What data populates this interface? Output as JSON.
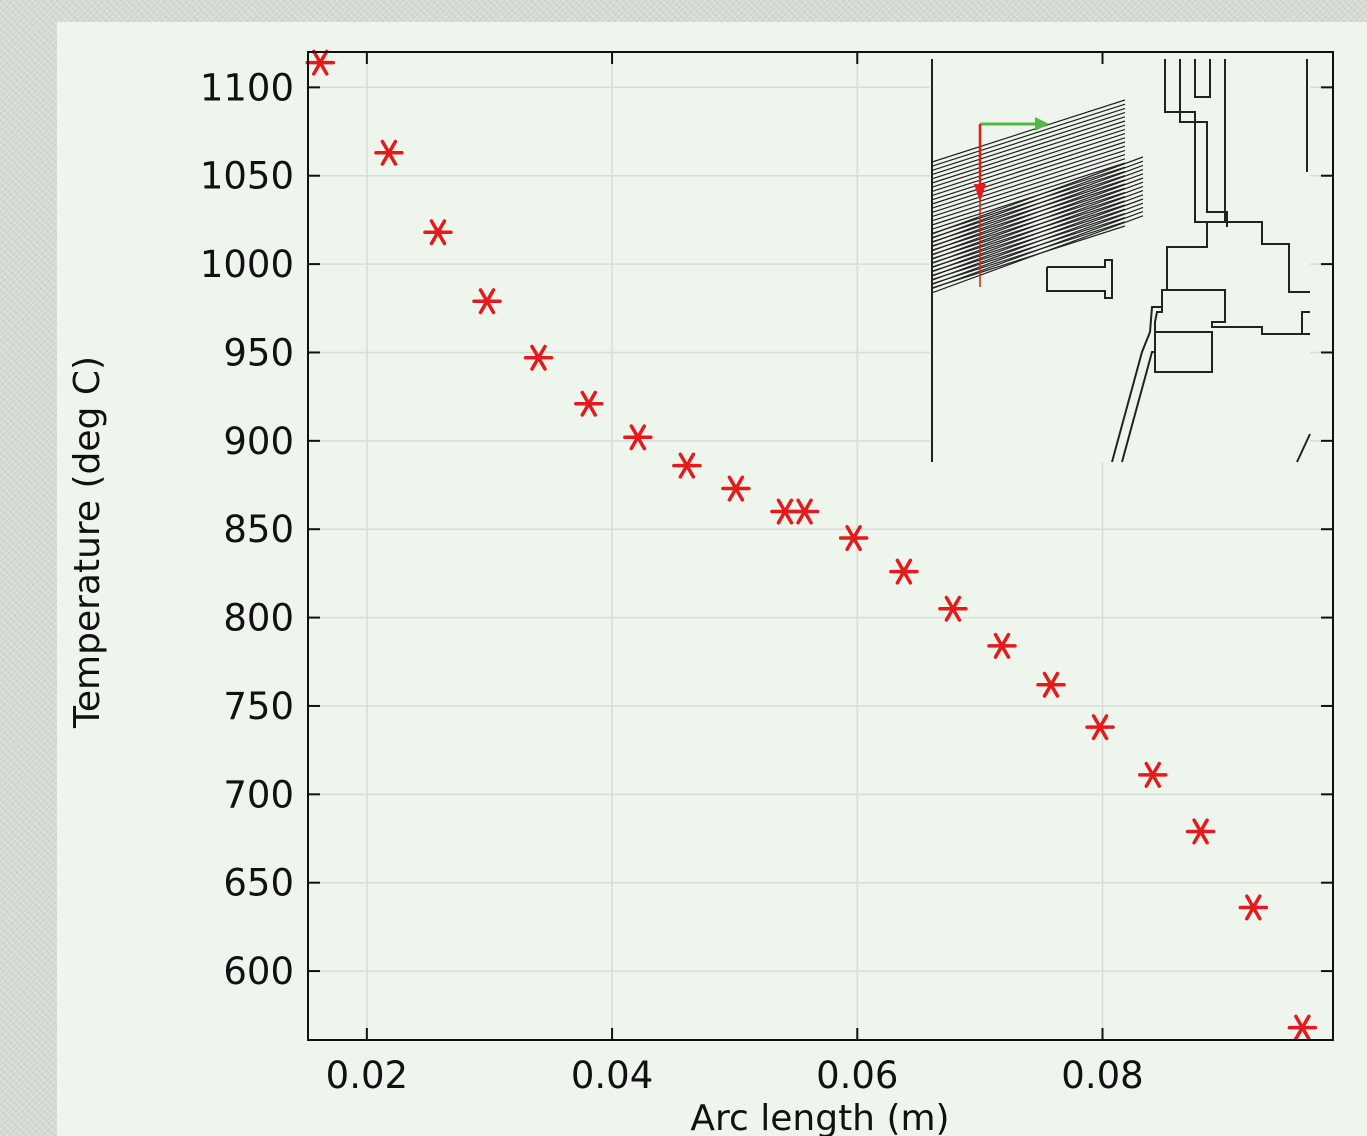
{
  "chart_data": {
    "type": "scatter",
    "xlabel": "Arc length (m)",
    "ylabel": "Temperature (deg C)",
    "xlim": [
      0.0152,
      0.0988
    ],
    "ylim": [
      561,
      1120
    ],
    "xticks": [
      0.02,
      0.04,
      0.06,
      0.08
    ],
    "xtick_labels": [
      "0.02",
      "0.04",
      "0.06",
      "0.08"
    ],
    "yticks": [
      600,
      650,
      700,
      750,
      800,
      850,
      900,
      950,
      1000,
      1050,
      1100
    ],
    "ytick_labels": [
      "600",
      "650",
      "700",
      "750",
      "800",
      "850",
      "900",
      "950",
      "1000",
      "1050",
      "1100"
    ],
    "grid": true,
    "legend": "none",
    "series": [
      {
        "marker": "asterisk",
        "color": "#e41a1c",
        "x": [
          0.0162,
          0.0218,
          0.0258,
          0.0298,
          0.034,
          0.0381,
          0.0421,
          0.0461,
          0.0501,
          0.0541,
          0.0557,
          0.0597,
          0.0638,
          0.0678,
          0.0718,
          0.0758,
          0.0798,
          0.0841,
          0.088,
          0.0923,
          0.0963
        ],
        "y": [
          1114,
          1063,
          1018,
          979,
          947,
          921,
          902,
          886,
          873,
          860,
          860,
          845,
          826,
          805,
          784,
          762,
          738,
          711,
          679,
          636,
          568
        ]
      }
    ]
  },
  "inset": {
    "description_icon": "geometry-inset",
    "arrow_x_color": "#52b848",
    "arrow_y_color": "#e41a1c",
    "line_color": "#222222"
  }
}
